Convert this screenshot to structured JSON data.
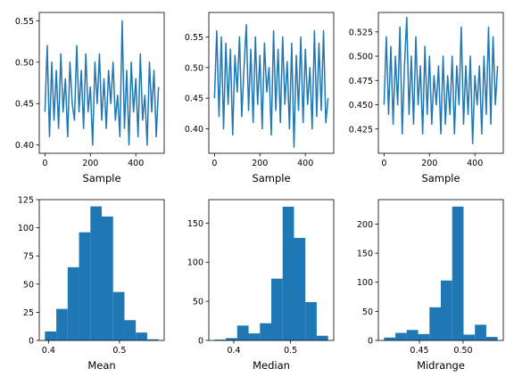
{
  "figure": {
    "background": "#ffffff"
  },
  "chart_data": [
    {
      "type": "line",
      "panel": "top-left",
      "xlabel": "Sample",
      "ylabel": "",
      "color": "#1f77b4",
      "xlim": [
        -25,
        525
      ],
      "ylim": [
        0.39,
        0.56
      ],
      "xticks": [
        0,
        200,
        400
      ],
      "yticks": [
        0.4,
        0.45,
        0.5,
        0.55
      ],
      "ytick_decimals": 2,
      "grid": false,
      "series": [
        {
          "x": [
            0,
            10,
            20,
            30,
            40,
            50,
            60,
            70,
            80,
            90,
            100,
            110,
            120,
            130,
            140,
            150,
            160,
            170,
            180,
            190,
            200,
            210,
            220,
            230,
            240,
            250,
            260,
            270,
            280,
            290,
            300,
            310,
            320,
            330,
            340,
            350,
            360,
            370,
            380,
            390,
            400,
            410,
            420,
            430,
            440,
            450,
            460,
            470,
            480,
            490,
            500
          ],
          "values": [
            0.44,
            0.52,
            0.41,
            0.5,
            0.43,
            0.49,
            0.42,
            0.51,
            0.44,
            0.48,
            0.41,
            0.5,
            0.45,
            0.43,
            0.52,
            0.44,
            0.49,
            0.42,
            0.51,
            0.44,
            0.47,
            0.4,
            0.5,
            0.45,
            0.51,
            0.43,
            0.48,
            0.42,
            0.49,
            0.45,
            0.5,
            0.43,
            0.46,
            0.41,
            0.55,
            0.42,
            0.49,
            0.4,
            0.5,
            0.44,
            0.48,
            0.41,
            0.51,
            0.43,
            0.46,
            0.4,
            0.5,
            0.44,
            0.49,
            0.41,
            0.47
          ]
        }
      ]
    },
    {
      "type": "line",
      "panel": "top-middle",
      "xlabel": "Sample",
      "ylabel": "",
      "color": "#1f77b4",
      "xlim": [
        -25,
        525
      ],
      "ylim": [
        0.36,
        0.59
      ],
      "xticks": [
        0,
        200,
        400
      ],
      "yticks": [
        0.4,
        0.45,
        0.5,
        0.55
      ],
      "ytick_decimals": 2,
      "grid": false,
      "series": [
        {
          "x": [
            0,
            10,
            20,
            30,
            40,
            50,
            60,
            70,
            80,
            90,
            100,
            110,
            120,
            130,
            140,
            150,
            160,
            170,
            180,
            190,
            200,
            210,
            220,
            230,
            240,
            250,
            260,
            270,
            280,
            290,
            300,
            310,
            320,
            330,
            340,
            350,
            360,
            370,
            380,
            390,
            400,
            410,
            420,
            430,
            440,
            450,
            460,
            470,
            480,
            490,
            500
          ],
          "values": [
            0.45,
            0.56,
            0.42,
            0.55,
            0.4,
            0.54,
            0.44,
            0.53,
            0.39,
            0.52,
            0.46,
            0.55,
            0.42,
            0.5,
            0.57,
            0.43,
            0.53,
            0.41,
            0.55,
            0.44,
            0.52,
            0.4,
            0.54,
            0.46,
            0.5,
            0.39,
            0.56,
            0.43,
            0.53,
            0.41,
            0.55,
            0.44,
            0.51,
            0.4,
            0.54,
            0.37,
            0.52,
            0.43,
            0.55,
            0.41,
            0.53,
            0.44,
            0.5,
            0.4,
            0.56,
            0.42,
            0.54,
            0.43,
            0.56,
            0.41,
            0.45
          ]
        }
      ]
    },
    {
      "type": "line",
      "panel": "top-right",
      "xlabel": "Sample",
      "ylabel": "",
      "color": "#1f77b4",
      "xlim": [
        -25,
        525
      ],
      "ylim": [
        0.4,
        0.545
      ],
      "xticks": [
        0,
        200,
        400
      ],
      "yticks": [
        0.425,
        0.45,
        0.475,
        0.5,
        0.525
      ],
      "ytick_decimals": 3,
      "grid": false,
      "series": [
        {
          "x": [
            0,
            10,
            20,
            30,
            40,
            50,
            60,
            70,
            80,
            90,
            100,
            110,
            120,
            130,
            140,
            150,
            160,
            170,
            180,
            190,
            200,
            210,
            220,
            230,
            240,
            250,
            260,
            270,
            280,
            290,
            300,
            310,
            320,
            330,
            340,
            350,
            360,
            370,
            380,
            390,
            400,
            410,
            420,
            430,
            440,
            450,
            460,
            470,
            480,
            490,
            500
          ],
          "values": [
            0.45,
            0.52,
            0.44,
            0.51,
            0.43,
            0.5,
            0.45,
            0.53,
            0.42,
            0.49,
            0.54,
            0.44,
            0.5,
            0.43,
            0.52,
            0.45,
            0.49,
            0.42,
            0.51,
            0.44,
            0.5,
            0.43,
            0.48,
            0.45,
            0.49,
            0.42,
            0.5,
            0.43,
            0.48,
            0.44,
            0.5,
            0.42,
            0.49,
            0.45,
            0.53,
            0.43,
            0.49,
            0.44,
            0.5,
            0.41,
            0.48,
            0.45,
            0.49,
            0.42,
            0.5,
            0.44,
            0.53,
            0.43,
            0.52,
            0.45,
            0.49
          ]
        }
      ]
    },
    {
      "type": "bar",
      "subtype": "histogram",
      "panel": "bottom-left",
      "xlabel": "Mean",
      "ylabel": "",
      "color": "#1f77b4",
      "bin_edges": [
        0.395,
        0.411,
        0.427,
        0.443,
        0.459,
        0.475,
        0.491,
        0.507,
        0.523,
        0.539,
        0.555
      ],
      "values": [
        8,
        28,
        65,
        96,
        119,
        110,
        43,
        18,
        7,
        1
      ],
      "xlim": [
        0.387,
        0.563
      ],
      "ylim": [
        0,
        125
      ],
      "xticks": [
        0.4,
        0.5
      ],
      "yticks": [
        0,
        25,
        50,
        75,
        100,
        125
      ],
      "xtick_decimals": 1,
      "grid": false
    },
    {
      "type": "bar",
      "subtype": "histogram",
      "panel": "bottom-middle",
      "xlabel": "Median",
      "ylabel": "",
      "color": "#1f77b4",
      "bin_edges": [
        0.366,
        0.386,
        0.406,
        0.426,
        0.446,
        0.466,
        0.486,
        0.506,
        0.526,
        0.546,
        0.566
      ],
      "values": [
        1,
        3,
        19,
        9,
        22,
        79,
        171,
        131,
        49,
        6
      ],
      "xlim": [
        0.356,
        0.576
      ],
      "ylim": [
        0,
        180
      ],
      "xticks": [
        0.4,
        0.5
      ],
      "yticks": [
        0,
        50,
        100,
        150
      ],
      "xtick_decimals": 1,
      "grid": false
    },
    {
      "type": "bar",
      "subtype": "histogram",
      "panel": "bottom-right",
      "xlabel": "Midrange",
      "ylabel": "",
      "color": "#1f77b4",
      "bin_edges": [
        0.4095,
        0.4225,
        0.4355,
        0.4485,
        0.4615,
        0.4745,
        0.4875,
        0.5005,
        0.5135,
        0.5265,
        0.5395
      ],
      "values": [
        5,
        13,
        18,
        11,
        57,
        103,
        230,
        10,
        27,
        6
      ],
      "xlim": [
        0.403,
        0.546
      ],
      "ylim": [
        0,
        242
      ],
      "xticks": [
        0.45,
        0.5
      ],
      "yticks": [
        0,
        50,
        100,
        150,
        200
      ],
      "xtick_decimals": 2,
      "grid": false
    }
  ]
}
